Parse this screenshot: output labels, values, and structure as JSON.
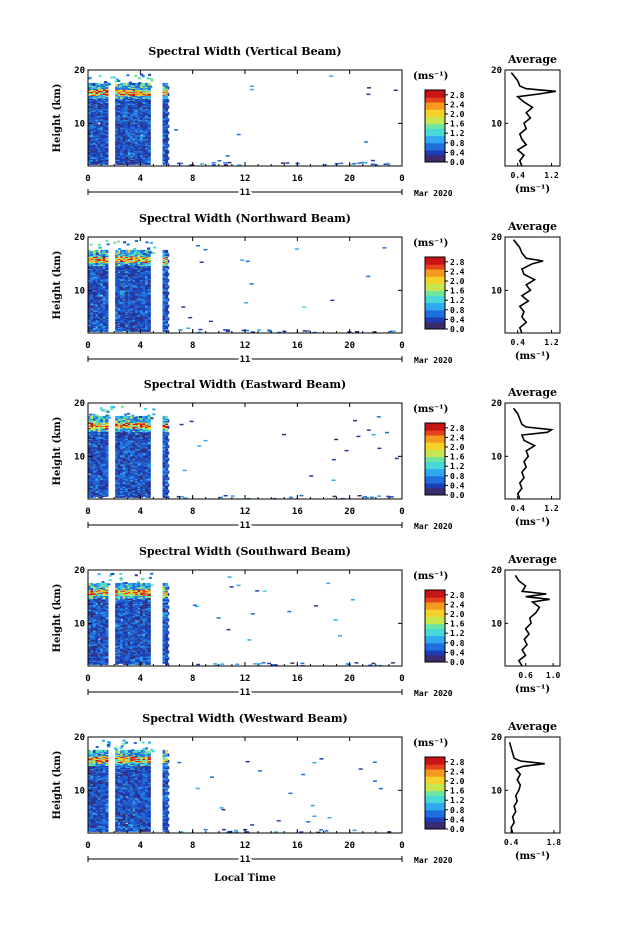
{
  "chart_data": [
    {
      "type": "heatmap",
      "title": "Spectral Width (Vertical Beam)",
      "ylabel": "Height (km)",
      "xlim": [
        0,
        24
      ],
      "ylim": [
        2,
        20
      ],
      "x_ticks": [
        "0",
        "4",
        "8",
        "12",
        "16",
        "20",
        "0"
      ],
      "y_ticks": [
        "10",
        "20"
      ],
      "date_label": "11",
      "month_label": "Mar 2020",
      "colorbar": {
        "unit": "(ms⁻¹)",
        "ticks": [
          "0.0",
          "0.4",
          "0.8",
          "1.2",
          "1.6",
          "2.0",
          "2.4",
          "2.8"
        ],
        "range": [
          0,
          3.0
        ]
      },
      "average": {
        "title": "Average",
        "xlabel": "(ms⁻¹)",
        "x_ticks": [
          "0.4",
          "1.2"
        ],
        "xlim": [
          0.1,
          1.4
        ],
        "y_ticks": [
          "10",
          "20"
        ],
        "profile": [
          [
            2,
            0.5
          ],
          [
            3,
            0.45
          ],
          [
            4,
            0.55
          ],
          [
            5,
            0.4
          ],
          [
            6,
            0.6
          ],
          [
            7,
            0.5
          ],
          [
            8,
            0.45
          ],
          [
            9,
            0.6
          ],
          [
            10,
            0.55
          ],
          [
            11,
            0.7
          ],
          [
            12,
            0.6
          ],
          [
            13,
            0.75
          ],
          [
            14,
            0.55
          ],
          [
            15,
            0.4
          ],
          [
            15.5,
            0.9
          ],
          [
            16,
            1.3
          ],
          [
            16.5,
            0.6
          ],
          [
            17,
            0.45
          ],
          [
            18,
            0.4
          ],
          [
            19,
            0.3
          ],
          [
            19.5,
            0.25
          ]
        ]
      }
    },
    {
      "type": "heatmap",
      "title": "Spectral Width (Northward Beam)",
      "ylabel": "Height (km)",
      "xlim": [
        0,
        24
      ],
      "ylim": [
        2,
        20
      ],
      "x_ticks": [
        "0",
        "4",
        "8",
        "12",
        "16",
        "20",
        "0"
      ],
      "y_ticks": [
        "10",
        "20"
      ],
      "date_label": "11",
      "month_label": "Mar 2020",
      "colorbar": {
        "unit": "(ms⁻¹)",
        "ticks": [
          "0.0",
          "0.4",
          "0.8",
          "1.2",
          "1.6",
          "2.0",
          "2.4",
          "2.8"
        ],
        "range": [
          0,
          3.0
        ]
      },
      "average": {
        "title": "Average",
        "xlabel": "(ms⁻¹)",
        "x_ticks": [
          "0.4",
          "1.2"
        ],
        "xlim": [
          0.1,
          1.4
        ],
        "y_ticks": [
          "10",
          "20"
        ],
        "profile": [
          [
            2,
            0.5
          ],
          [
            3,
            0.45
          ],
          [
            4,
            0.6
          ],
          [
            5,
            0.5
          ],
          [
            6,
            0.55
          ],
          [
            7,
            0.45
          ],
          [
            8,
            0.65
          ],
          [
            9,
            0.5
          ],
          [
            10,
            0.7
          ],
          [
            11,
            0.6
          ],
          [
            12,
            0.8
          ],
          [
            13,
            0.55
          ],
          [
            14,
            0.5
          ],
          [
            15,
            0.75
          ],
          [
            15.5,
            1.0
          ],
          [
            16,
            0.6
          ],
          [
            17,
            0.5
          ],
          [
            18,
            0.45
          ],
          [
            19,
            0.35
          ],
          [
            19.5,
            0.3
          ]
        ]
      }
    },
    {
      "type": "heatmap",
      "title": "Spectral Width (Eastward Beam)",
      "ylabel": "Height (km)",
      "xlim": [
        0,
        24
      ],
      "ylim": [
        2,
        20
      ],
      "x_ticks": [
        "0",
        "4",
        "8",
        "12",
        "16",
        "20",
        "0"
      ],
      "y_ticks": [
        "10",
        "20"
      ],
      "date_label": "11",
      "month_label": "Mar 2020",
      "colorbar": {
        "unit": "(ms⁻¹)",
        "ticks": [
          "0.0",
          "0.4",
          "0.8",
          "1.2",
          "1.6",
          "2.0",
          "2.4",
          "2.8"
        ],
        "range": [
          0,
          3.0
        ]
      },
      "average": {
        "title": "Average",
        "xlabel": "(ms⁻¹)",
        "x_ticks": [
          "0.4",
          "1.2"
        ],
        "xlim": [
          0.1,
          1.4
        ],
        "y_ticks": [
          "10",
          "20"
        ],
        "profile": [
          [
            2,
            0.45
          ],
          [
            3,
            0.4
          ],
          [
            4,
            0.5
          ],
          [
            5,
            0.45
          ],
          [
            6,
            0.55
          ],
          [
            7,
            0.5
          ],
          [
            8,
            0.6
          ],
          [
            9,
            0.55
          ],
          [
            10,
            0.65
          ],
          [
            11,
            0.6
          ],
          [
            12,
            0.8
          ],
          [
            13,
            0.55
          ],
          [
            14,
            0.5
          ],
          [
            14.5,
            1.1
          ],
          [
            15,
            1.2
          ],
          [
            15.5,
            0.6
          ],
          [
            16,
            0.5
          ],
          [
            17,
            0.45
          ],
          [
            18,
            0.4
          ],
          [
            19,
            0.3
          ]
        ]
      }
    },
    {
      "type": "heatmap",
      "title": "Spectral Width (Southward Beam)",
      "ylabel": "Height (km)",
      "xlim": [
        0,
        24
      ],
      "ylim": [
        2,
        20
      ],
      "x_ticks": [
        "0",
        "4",
        "8",
        "12",
        "16",
        "20",
        "0"
      ],
      "y_ticks": [
        "10",
        "20"
      ],
      "date_label": "11",
      "month_label": "Mar 2020",
      "colorbar": {
        "unit": "(ms⁻¹)",
        "ticks": [
          "0.0",
          "0.4",
          "0.8",
          "1.2",
          "1.6",
          "2.0",
          "2.4",
          "2.8"
        ],
        "range": [
          0,
          3.0
        ]
      },
      "average": {
        "title": "Average",
        "xlabel": "(ms⁻¹)",
        "x_ticks": [
          "0.6",
          "1.0"
        ],
        "xlim": [
          0.3,
          1.1
        ],
        "y_ticks": [
          "10",
          "20"
        ],
        "profile": [
          [
            2,
            0.55
          ],
          [
            3,
            0.5
          ],
          [
            4,
            0.6
          ],
          [
            5,
            0.55
          ],
          [
            6,
            0.62
          ],
          [
            7,
            0.58
          ],
          [
            8,
            0.65
          ],
          [
            9,
            0.6
          ],
          [
            10,
            0.68
          ],
          [
            11,
            0.66
          ],
          [
            12,
            0.75
          ],
          [
            13,
            0.8
          ],
          [
            14,
            0.7
          ],
          [
            14.5,
            0.95
          ],
          [
            15,
            0.6
          ],
          [
            15.5,
            0.9
          ],
          [
            16,
            0.55
          ],
          [
            17,
            0.6
          ],
          [
            18,
            0.5
          ],
          [
            19,
            0.45
          ]
        ]
      }
    },
    {
      "type": "heatmap",
      "title": "Spectral Width (Westward Beam)",
      "ylabel": "Height (km)",
      "xlabel": "Local Time",
      "xlim": [
        0,
        24
      ],
      "ylim": [
        2,
        20
      ],
      "x_ticks": [
        "0",
        "4",
        "8",
        "12",
        "16",
        "20",
        "0"
      ],
      "y_ticks": [
        "10",
        "20"
      ],
      "date_label": "11",
      "month_label": "Mar 2020",
      "colorbar": {
        "unit": "(ms⁻¹)",
        "ticks": [
          "0.0",
          "0.4",
          "0.8",
          "1.2",
          "1.6",
          "2.0",
          "2.4",
          "2.8"
        ],
        "range": [
          0,
          3.0
        ]
      },
      "average": {
        "title": "Average",
        "xlabel": "(ms⁻¹)",
        "x_ticks": [
          "0.4",
          "1.8"
        ],
        "xlim": [
          0.2,
          2.0
        ],
        "y_ticks": [
          "10",
          "20"
        ],
        "profile": [
          [
            2,
            0.45
          ],
          [
            3,
            0.4
          ],
          [
            4,
            0.5
          ],
          [
            5,
            0.45
          ],
          [
            6,
            0.55
          ],
          [
            7,
            0.5
          ],
          [
            8,
            0.6
          ],
          [
            9,
            0.55
          ],
          [
            10,
            0.65
          ],
          [
            11,
            0.7
          ],
          [
            12,
            0.6
          ],
          [
            13,
            0.7
          ],
          [
            14,
            0.55
          ],
          [
            14.5,
            0.8
          ],
          [
            15,
            1.5
          ],
          [
            15.5,
            0.7
          ],
          [
            16,
            0.5
          ],
          [
            17,
            0.45
          ],
          [
            18,
            0.4
          ],
          [
            19,
            0.35
          ]
        ]
      }
    }
  ]
}
